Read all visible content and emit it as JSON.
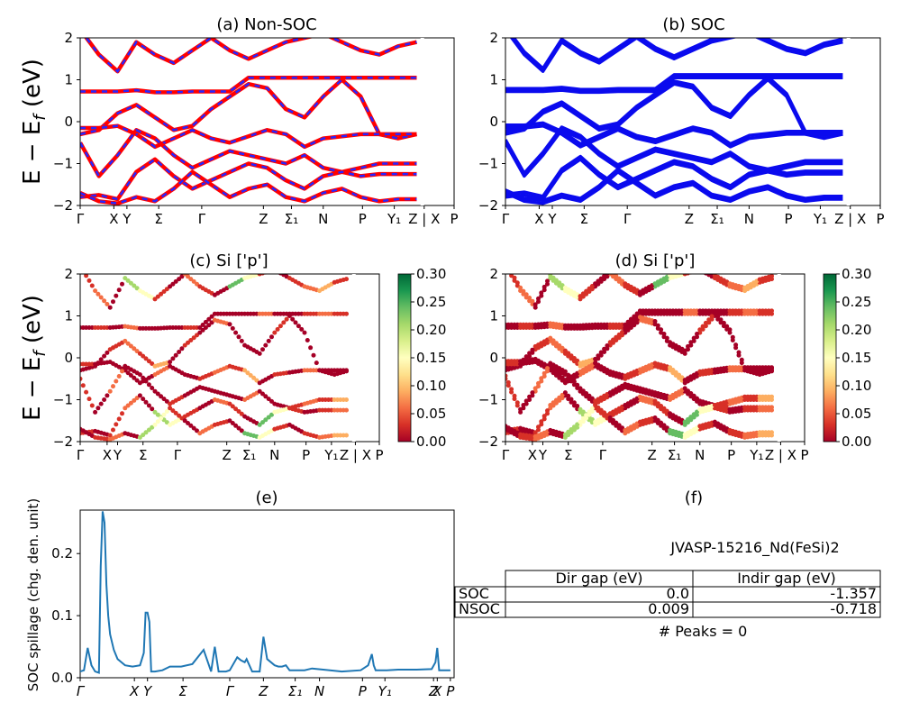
{
  "panels": {
    "a": {
      "title": "(a) Non-SOC"
    },
    "b": {
      "title": "(b) SOC"
    },
    "c": {
      "title": "(c)  Si ['p']"
    },
    "d": {
      "title": "(d) Si ['p']"
    },
    "e": {
      "title": "(e)"
    },
    "f": {
      "title": "(f)"
    }
  },
  "energy_axis": {
    "ylabel": "E − E_f (eV)",
    "ylim": [
      -2,
      2
    ],
    "ticks": [
      "2",
      "1",
      "0",
      "−1",
      "−2"
    ]
  },
  "kpath": {
    "labels": [
      "Γ",
      "X",
      "Y",
      "Σ",
      "Γ",
      "Z",
      "Σ₁",
      "N",
      "P",
      "Y₁",
      "Z | X",
      "P"
    ],
    "positions": [
      0,
      0.09,
      0.125,
      0.21,
      0.325,
      0.49,
      0.565,
      0.65,
      0.755,
      0.84,
      0.92,
      1.0
    ]
  },
  "colorbar": {
    "ticks": [
      "0.30",
      "0.25",
      "0.20",
      "0.15",
      "0.10",
      "0.05",
      "0.00"
    ],
    "range": [
      0,
      0.3
    ],
    "colormap": [
      "#a50026",
      "#d73027",
      "#f46d43",
      "#fdae61",
      "#fee08b",
      "#ffffbf",
      "#d9ef8b",
      "#a6d96a",
      "#66bd63",
      "#1a9850",
      "#006837"
    ]
  },
  "colors": {
    "nonsoc_line": "#ff0000",
    "nonsoc_dash": "#2626ff",
    "soc_line": "#0a0aee",
    "spillage": "#1f77b4"
  },
  "chart_data": [
    {
      "panel": "a",
      "type": "line",
      "title": "(a) Non-SOC",
      "ylabel": "E − E_f (eV)",
      "ylim": [
        -2,
        2
      ],
      "series": [
        {
          "x": [
            0,
            0.05,
            0.1,
            0.15,
            0.2,
            0.25,
            0.3,
            0.35,
            0.4,
            0.45,
            0.5,
            0.55,
            0.6,
            0.65,
            0.7,
            0.75,
            0.8,
            0.85,
            0.9
          ],
          "y": [
            0.72,
            0.72,
            0.72,
            0.75,
            0.7,
            0.7,
            0.72,
            0.72,
            0.72,
            1.05,
            1.05,
            1.05,
            1.05,
            1.05,
            1.05,
            1.05,
            1.05,
            1.05,
            1.05
          ]
        },
        {
          "x": [
            0,
            0.05,
            0.1,
            0.15,
            0.2,
            0.25,
            0.3,
            0.35,
            0.4,
            0.45,
            0.5,
            0.55,
            0.6,
            0.65,
            0.7,
            0.75,
            0.8,
            0.85,
            0.9
          ],
          "y": [
            -0.3,
            -0.2,
            0.2,
            0.4,
            0.1,
            -0.2,
            -0.1,
            0.3,
            0.6,
            0.9,
            0.8,
            0.3,
            0.1,
            0.6,
            1.0,
            0.6,
            -0.3,
            -0.4,
            -0.3
          ]
        },
        {
          "x": [
            0,
            0.05,
            0.1,
            0.15,
            0.2,
            0.25,
            0.3,
            0.35,
            0.4,
            0.45,
            0.5,
            0.55,
            0.6,
            0.65,
            0.7,
            0.75,
            0.8,
            0.85,
            0.9
          ],
          "y": [
            -0.15,
            -0.15,
            -0.1,
            -0.3,
            -0.6,
            -0.4,
            -0.2,
            -0.4,
            -0.5,
            -0.35,
            -0.2,
            -0.3,
            -0.6,
            -0.4,
            -0.35,
            -0.3,
            -0.3,
            -0.3,
            -0.3
          ]
        },
        {
          "x": [
            0,
            0.05,
            0.1,
            0.15,
            0.2,
            0.25,
            0.3,
            0.35,
            0.4,
            0.45,
            0.5,
            0.55,
            0.6,
            0.65,
            0.7,
            0.75,
            0.8,
            0.85,
            0.9
          ],
          "y": [
            -0.5,
            -1.3,
            -0.8,
            -0.2,
            -0.4,
            -0.8,
            -1.1,
            -0.9,
            -0.7,
            -0.8,
            -0.9,
            -1.0,
            -0.8,
            -1.1,
            -1.2,
            -1.1,
            -1.0,
            -1.0,
            -1.0
          ]
        },
        {
          "x": [
            0,
            0.05,
            0.1,
            0.15,
            0.2,
            0.25,
            0.3,
            0.35,
            0.4,
            0.45,
            0.5,
            0.55,
            0.6,
            0.65,
            0.7,
            0.75,
            0.8,
            0.85,
            0.9
          ],
          "y": [
            -1.8,
            -1.75,
            -1.85,
            -1.2,
            -0.9,
            -1.3,
            -1.6,
            -1.4,
            -1.2,
            -1.0,
            -1.1,
            -1.4,
            -1.6,
            -1.3,
            -1.2,
            -1.3,
            -1.25,
            -1.25,
            -1.25
          ]
        },
        {
          "x": [
            0,
            0.05,
            0.1,
            0.15,
            0.2,
            0.25,
            0.3,
            0.35,
            0.4,
            0.45,
            0.5,
            0.55,
            0.6,
            0.65,
            0.7,
            0.75,
            0.8,
            0.85,
            0.9
          ],
          "y": [
            -1.7,
            -1.9,
            -1.95,
            -1.8,
            -1.9,
            -1.6,
            -1.2,
            -1.5,
            -1.8,
            -1.6,
            -1.5,
            -1.8,
            -1.9,
            -1.7,
            -1.6,
            -1.8,
            -1.9,
            -1.85,
            -1.85
          ]
        },
        {
          "x": [
            0,
            0.05,
            0.1,
            0.15,
            0.2,
            0.25,
            0.3,
            0.35,
            0.4,
            0.45,
            0.5,
            0.55,
            0.6,
            0.65,
            0.7,
            0.75,
            0.8,
            0.85,
            0.9
          ],
          "y": [
            2.2,
            1.6,
            1.2,
            1.9,
            1.6,
            1.4,
            1.7,
            2.0,
            1.7,
            1.5,
            1.7,
            1.9,
            2.0,
            2.1,
            1.9,
            1.7,
            1.6,
            1.8,
            1.9
          ]
        }
      ]
    },
    {
      "panel": "b",
      "type": "line",
      "title": "(b) SOC",
      "ylabel": "",
      "ylim": [
        -2,
        2
      ]
    },
    {
      "panel": "c",
      "type": "scatter",
      "title": "(c)  Si ['p']",
      "ylabel": "E − E_f (eV)",
      "ylim": [
        -2,
        2
      ],
      "colorbar_range": [
        0,
        0.3
      ],
      "weights": [
        0.0,
        0.02,
        0.05,
        0.08,
        0.02,
        0.0,
        0.04,
        0.06,
        0.01,
        0.2,
        0.16,
        0.03,
        0.01,
        0.05,
        0.02,
        0.0,
        0.25,
        0.14,
        0.02
      ]
    },
    {
      "panel": "d",
      "type": "scatter",
      "title": "(d) Si ['p']",
      "ylabel": "",
      "ylim": [
        -2,
        2
      ],
      "colorbar_range": [
        0,
        0.3
      ]
    },
    {
      "panel": "e",
      "type": "line",
      "title": "(e)",
      "ylabel": "SOC spillage (chg. den. unit)",
      "ylim": [
        0,
        0.27
      ],
      "yticks": [
        "0.0",
        "0.1",
        "0.2"
      ],
      "xticks": [
        "Γ",
        "X",
        "Y",
        "Σ",
        "Γ",
        "Z",
        "Σ₁",
        "N",
        "P",
        "Y₁",
        "Z",
        "X",
        "P"
      ],
      "xtick_positions": [
        0,
        0.145,
        0.18,
        0.275,
        0.4,
        0.49,
        0.575,
        0.64,
        0.755,
        0.815,
        0.945,
        0.955,
        0.99
      ],
      "series": [
        {
          "name": "",
          "x": [
            0,
            0.01,
            0.02,
            0.03,
            0.04,
            0.05,
            0.055,
            0.06,
            0.065,
            0.07,
            0.075,
            0.08,
            0.09,
            0.1,
            0.12,
            0.14,
            0.16,
            0.17,
            0.175,
            0.18,
            0.185,
            0.19,
            0.2,
            0.22,
            0.24,
            0.27,
            0.3,
            0.33,
            0.35,
            0.36,
            0.37,
            0.375,
            0.38,
            0.39,
            0.4,
            0.42,
            0.43,
            0.44,
            0.445,
            0.46,
            0.47,
            0.48,
            0.49,
            0.5,
            0.52,
            0.53,
            0.54,
            0.55,
            0.56,
            0.6,
            0.62,
            0.65,
            0.7,
            0.75,
            0.77,
            0.78,
            0.785,
            0.79,
            0.82,
            0.85,
            0.9,
            0.94,
            0.95,
            0.955,
            0.96,
            0.97,
            0.99
          ],
          "y": [
            0.01,
            0.012,
            0.048,
            0.02,
            0.01,
            0.008,
            0.18,
            0.268,
            0.25,
            0.15,
            0.1,
            0.07,
            0.045,
            0.03,
            0.02,
            0.018,
            0.02,
            0.04,
            0.105,
            0.105,
            0.09,
            0.01,
            0.01,
            0.012,
            0.018,
            0.018,
            0.022,
            0.045,
            0.01,
            0.05,
            0.01,
            0.01,
            0.01,
            0.01,
            0.012,
            0.033,
            0.028,
            0.025,
            0.03,
            0.01,
            0.01,
            0.01,
            0.066,
            0.03,
            0.02,
            0.018,
            0.018,
            0.02,
            0.012,
            0.012,
            0.015,
            0.013,
            0.01,
            0.012,
            0.02,
            0.038,
            0.02,
            0.012,
            0.012,
            0.013,
            0.013,
            0.014,
            0.025,
            0.048,
            0.012,
            0.012,
            0.012
          ]
        }
      ]
    }
  ],
  "table": {
    "title": "JVASP-15216_Nd(FeSi)2",
    "columns": [
      "",
      "Dir gap (eV)",
      "Indir gap (eV)"
    ],
    "rows": [
      {
        "label": "SOC",
        "dir": "0.0",
        "indir": "-1.357"
      },
      {
        "label": "NSOC",
        "dir": "0.009",
        "indir": "-0.718"
      }
    ],
    "footer": "# Peaks = 0"
  }
}
